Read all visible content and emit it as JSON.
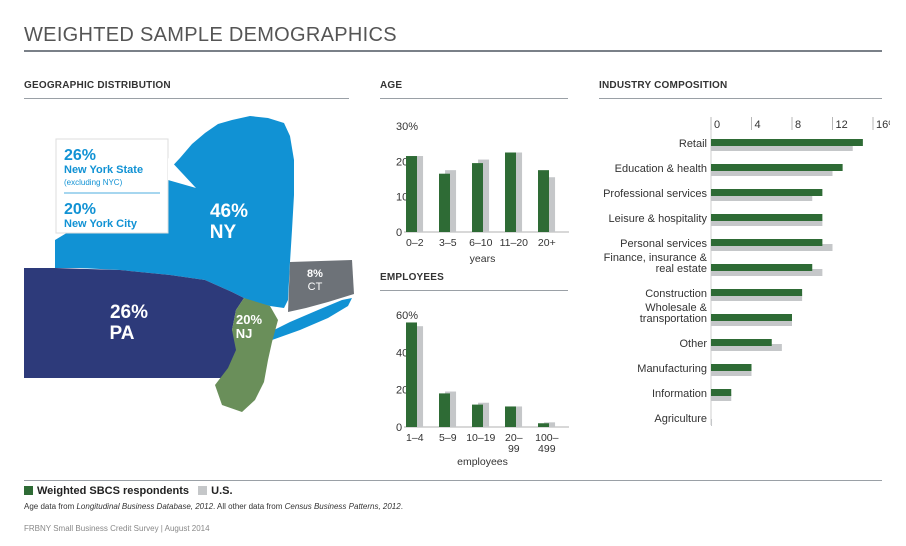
{
  "title": "WEIGHTED SAMPLE DEMOGRAPHICS",
  "colors": {
    "sbcs": "#2e6b35",
    "us": "#c5c7c9",
    "ny": "#1192d4",
    "pa": "#2d3a7a",
    "nj": "#6a8f5a",
    "ct": "#6d7278",
    "water": "#1192d4"
  },
  "geo": {
    "heading": "GEOGRAPHIC DISTRIBUTION",
    "ny_pct": "46%",
    "ny_label": "NY",
    "pa_pct": "26%",
    "pa_label": "PA",
    "nj_pct": "20%",
    "nj_label": "NJ",
    "ct_pct": "8%",
    "ct_label": "CT",
    "callout1_pct": "26%",
    "callout1_label": "New York State",
    "callout1_sub": "(excluding NYC)",
    "callout2_pct": "20%",
    "callout2_label": "New York City"
  },
  "legend": {
    "sbcs": "Weighted SBCS respondents",
    "us": "U.S."
  },
  "note_prefix": "Age data from ",
  "note_src1": "Longitudinal Business Database, 2012",
  "note_mid": ". All other data from ",
  "note_src2": "Census Business Patterns, 2012",
  "note_end": ".",
  "credit": "FRBNY Small Business Credit Survey  |  August 2014",
  "chart_data": [
    {
      "type": "bar",
      "title": "AGE",
      "categories": [
        "0–2",
        "3–5",
        "6–10",
        "11–20",
        "20+"
      ],
      "xlabel": "years",
      "yticks": [
        "0",
        "10",
        "20",
        "30%"
      ],
      "ylim": [
        0,
        30
      ],
      "series": [
        {
          "name": "Weighted SBCS respondents",
          "values": [
            21.5,
            16.5,
            19.5,
            22.5,
            17.5
          ]
        },
        {
          "name": "U.S.",
          "values": [
            21.5,
            17.5,
            20.5,
            22.5,
            15.5
          ]
        }
      ]
    },
    {
      "type": "bar",
      "title": "EMPLOYEES",
      "categories": [
        "1–4",
        "5–9",
        "10–19",
        "20–\n99",
        "100–\n499"
      ],
      "xlabel": "employees",
      "yticks": [
        "0",
        "20",
        "40",
        "60%"
      ],
      "ylim": [
        0,
        60
      ],
      "series": [
        {
          "name": "Weighted SBCS respondents",
          "values": [
            56,
            18,
            12,
            11,
            2
          ]
        },
        {
          "name": "U.S.",
          "values": [
            54,
            19,
            13,
            11,
            2.5
          ]
        }
      ]
    },
    {
      "type": "bar",
      "orientation": "horizontal",
      "title": "INDUSTRY COMPOSITION",
      "categories": [
        "Retail",
        "Education & health",
        "Professional services",
        "Leisure & hospitality",
        "Personal services",
        "Finance, insurance &\nreal estate",
        "Construction",
        "Wholesale &\ntransportation",
        "Other",
        "Manufacturing",
        "Information",
        "Agriculture"
      ],
      "xticks": [
        "0",
        "4",
        "8",
        "12",
        "16%"
      ],
      "xlim": [
        0,
        16
      ],
      "series": [
        {
          "name": "Weighted SBCS respondents",
          "values": [
            15,
            13,
            11,
            11,
            11,
            10,
            9,
            8,
            6,
            4,
            2,
            0
          ]
        },
        {
          "name": "U.S.",
          "values": [
            14,
            12,
            10,
            11,
            12,
            11,
            9,
            8,
            7,
            4,
            2,
            0.1
          ]
        }
      ]
    }
  ]
}
